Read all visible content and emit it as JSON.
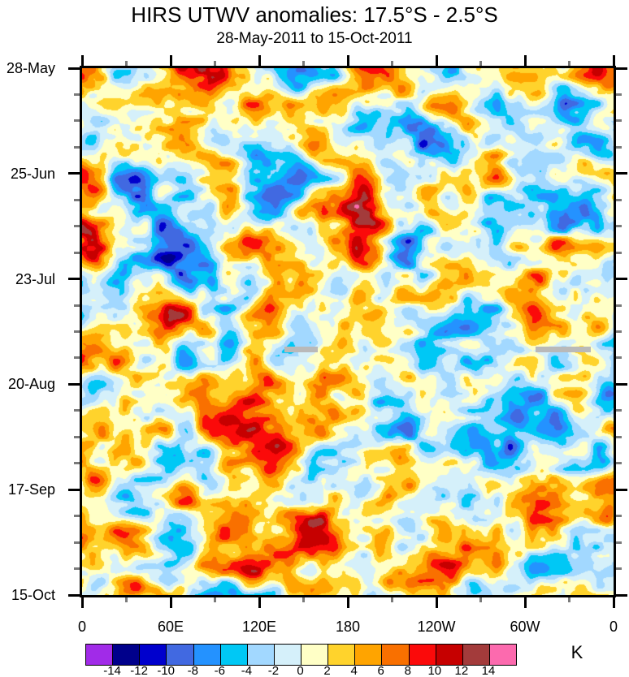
{
  "chart_data": {
    "type": "heatmap",
    "variant": "hovmoller-filled-contours-time-vs-longitude",
    "title": "HIRS UTWV anomalies: 17.5°S - 2.5°S",
    "subtitle": "28-May-2011 to 15-Oct-2011",
    "x_axis": {
      "tick_labels": [
        "0",
        "60E",
        "120E",
        "180",
        "120W",
        "60W",
        "0"
      ],
      "range_deg": [
        0,
        360
      ],
      "major_tick_interval_deg": 60,
      "minor_tick_interval_deg": 30
    },
    "y_axis": {
      "tick_labels": [
        "28-May",
        "25-Jun",
        "23-Jul",
        "20-Aug",
        "17-Sep",
        "15-Oct"
      ],
      "direction": "time-increases-downward",
      "major_tick_interval_days": 28,
      "minor_ticks_between_majors": 3
    },
    "colorbar": {
      "unit": "K",
      "boundary_labels": [
        "-14",
        "-12",
        "-10",
        "-8",
        "-6",
        "-4",
        "-2",
        "0",
        "2",
        "4",
        "6",
        "8",
        "10",
        "12",
        "14"
      ],
      "levels_K": [
        -14,
        -12,
        -10,
        -8,
        -6,
        -4,
        -2,
        0,
        2,
        4,
        6,
        8,
        10,
        12,
        14
      ],
      "colors": [
        "#a12be8",
        "#00008b",
        "#0000cd",
        "#4169e1",
        "#2492ff",
        "#00c8f5",
        "#a2d8ff",
        "#d5f0fa",
        "#ffffc6",
        "#ffd32c",
        "#ffa400",
        "#f97000",
        "#fb0a0a",
        "#c60000",
        "#a33b3b",
        "#fc6aae"
      ]
    },
    "missing_data_segments": [
      {
        "approx_lon_range": [
          "137E",
          "160E"
        ],
        "approx_date": "11-Aug",
        "color": "#b9b9b9"
      },
      {
        "approx_lon_range": [
          "53W",
          "15W"
        ],
        "approx_date": "11-Aug",
        "color": "#b9b9b9"
      }
    ],
    "approx_field_K": {
      "note": "coarse visual estimate of anomaly field read from filled-contour colors; rows = time (top to bottom), cols = longitude 0E to 360E",
      "rows": 12,
      "cols": 12,
      "values": [
        [
          3,
          -2,
          12,
          4,
          -2,
          3,
          9,
          -4,
          2,
          -3,
          -6,
          4
        ],
        [
          2,
          -7,
          4,
          -2,
          3,
          6,
          -3,
          -7,
          3,
          -2,
          -4,
          8
        ],
        [
          5,
          2,
          -4,
          3,
          -3,
          4,
          8,
          -5,
          -4,
          -2,
          3,
          -2
        ],
        [
          3,
          -8,
          -6,
          2,
          -5,
          6,
          13,
          3,
          -3,
          2,
          -8,
          3
        ],
        [
          4,
          2,
          -7,
          8,
          3,
          5,
          9,
          -4,
          2,
          -5,
          3,
          -6
        ],
        [
          -3,
          5,
          3,
          -5,
          7,
          4,
          8,
          2,
          -4,
          3,
          -2,
          4
        ],
        [
          4,
          -2,
          6,
          3,
          -6,
          9,
          5,
          -3,
          2,
          5,
          -6,
          2
        ],
        [
          -4,
          3,
          -2,
          6,
          3,
          8,
          -5,
          3,
          -4,
          2,
          4,
          -5
        ],
        [
          3,
          6,
          -5,
          2,
          8,
          3,
          9,
          -2,
          3,
          -6,
          2,
          4
        ],
        [
          -2,
          -5,
          4,
          7,
          -3,
          8,
          4,
          2,
          -5,
          3,
          -3,
          5
        ],
        [
          4,
          2,
          -4,
          6,
          9,
          12,
          5,
          -2,
          3,
          2,
          5,
          -3
        ],
        [
          -6,
          3,
          2,
          -5,
          4,
          7,
          -7,
          3,
          -2,
          4,
          2,
          3
        ]
      ]
    }
  }
}
